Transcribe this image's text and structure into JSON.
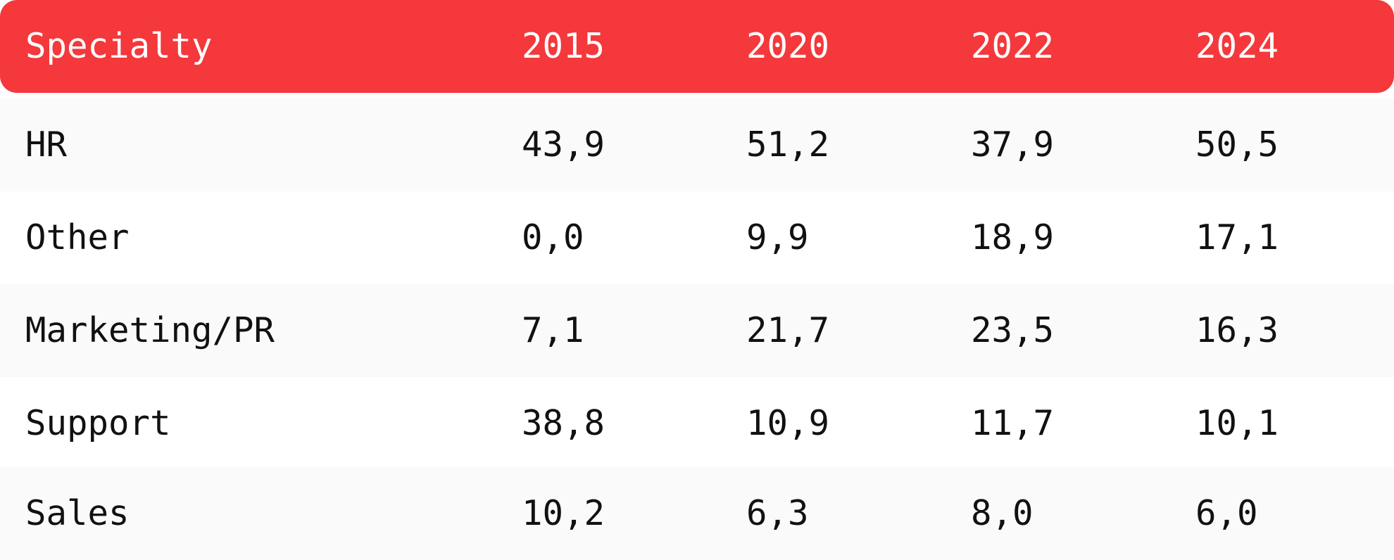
{
  "chart_data": {
    "type": "table",
    "columns": [
      "Specialty",
      "2015",
      "2020",
      "2022",
      "2024"
    ],
    "rows": [
      [
        "HR",
        "43,9",
        "51,2",
        "37,9",
        "50,5"
      ],
      [
        "Other",
        "0,0",
        "9,9",
        "18,9",
        "17,1"
      ],
      [
        "Marketing/PR",
        "7,1",
        "21,7",
        "23,5",
        "16,3"
      ],
      [
        "Support",
        "38,8",
        "10,9",
        "11,7",
        "10,1"
      ],
      [
        "Sales",
        "10,2",
        "6,3",
        "8,0",
        "6,0"
      ]
    ],
    "header_color": "#f4383b",
    "header_text_color": "#ffffff",
    "stripe_color": "#fafafa"
  }
}
